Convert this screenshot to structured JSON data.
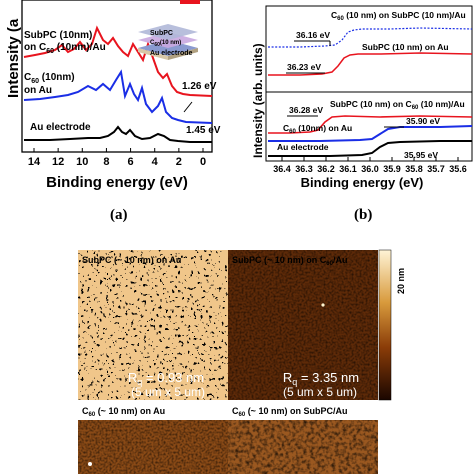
{
  "panel_a": {
    "label": "(a)",
    "ylabel": "Intensity (a",
    "xlabel": "Binding energy (eV)",
    "xticks": [
      "14",
      "12",
      "10",
      "8",
      "6",
      "4",
      "2",
      "0"
    ],
    "curve_labels": {
      "red_line1": "SubPC (10nm)",
      "red_line2_prefix": "on C",
      "red_line2_sub": "60",
      "red_line2_suffix": " (10nm)/Au",
      "blue_line1_prefix": "C",
      "blue_line1_sub": "60",
      "blue_line1_suffix": " (10nm)",
      "blue_line2": "on Au",
      "black": "Au electrode"
    },
    "annotations": {
      "red_gap": "1.26 eV",
      "blue_gap": "1.45 eV"
    },
    "inset": {
      "layer_top": "SubPC",
      "layer_mid_prefix": "C",
      "layer_mid_sub": "60",
      "layer_mid_suffix": "(10 nm)",
      "layer_bot": "Au electrode"
    },
    "colors": {
      "red": "#e8141e",
      "blue": "#1a2ee6",
      "black": "#000000"
    }
  },
  "panel_b": {
    "label": "(b)",
    "ylabel": "Intensity (arb. units)",
    "xlabel": "Binding energy (eV)",
    "xticks": [
      "36.4",
      "36.3",
      "36.2",
      "36.1",
      "36.0",
      "35.9",
      "35.8",
      "35.7",
      "35.6"
    ],
    "top_labels": {
      "open_prefix": "C",
      "open_sub": "60",
      "open_suffix": " (10 nm) on SubPC (10 nm)/Au",
      "red": "SubPC (10 nm) on Au",
      "val_open": "36.16 eV",
      "val_red": "36.23 eV"
    },
    "bottom_labels": {
      "red_prefix": "SubPC (10 nm) on C",
      "red_sub": "60",
      "red_suffix": " (10 nm)/Au",
      "blue_prefix": "C",
      "blue_sub": "60",
      "blue_suffix": " (10nm) on Au",
      "black": "Au electrode",
      "val_red": "36.28 eV",
      "val_blue": "35.90 eV",
      "val_black": "35.95 eV"
    }
  },
  "afm": {
    "images": [
      {
        "title": "SubPC (~ 10 nm) on Au",
        "rq": "R",
        "rq_sub": "q",
        "rq_val": " = 0.93 nm",
        "scan": "(5 um x 5 um)"
      },
      {
        "title_prefix": "SubPC (~ 10 nm) on C",
        "title_sub": "60",
        "title_suffix": "/Au",
        "rq": "R",
        "rq_sub": "q",
        "rq_val": " = 3.35 nm",
        "scan": "(5 um x 5 um)"
      },
      {
        "title_prefix": "C",
        "title_sub": "60",
        "title_suffix": " (~ 10 nm) on Au"
      },
      {
        "title_prefix": "C",
        "title_sub": "60",
        "title_suffix": " (~ 10 nm) on SubPC/Au"
      }
    ],
    "scalebar_label": "20 nm"
  }
}
